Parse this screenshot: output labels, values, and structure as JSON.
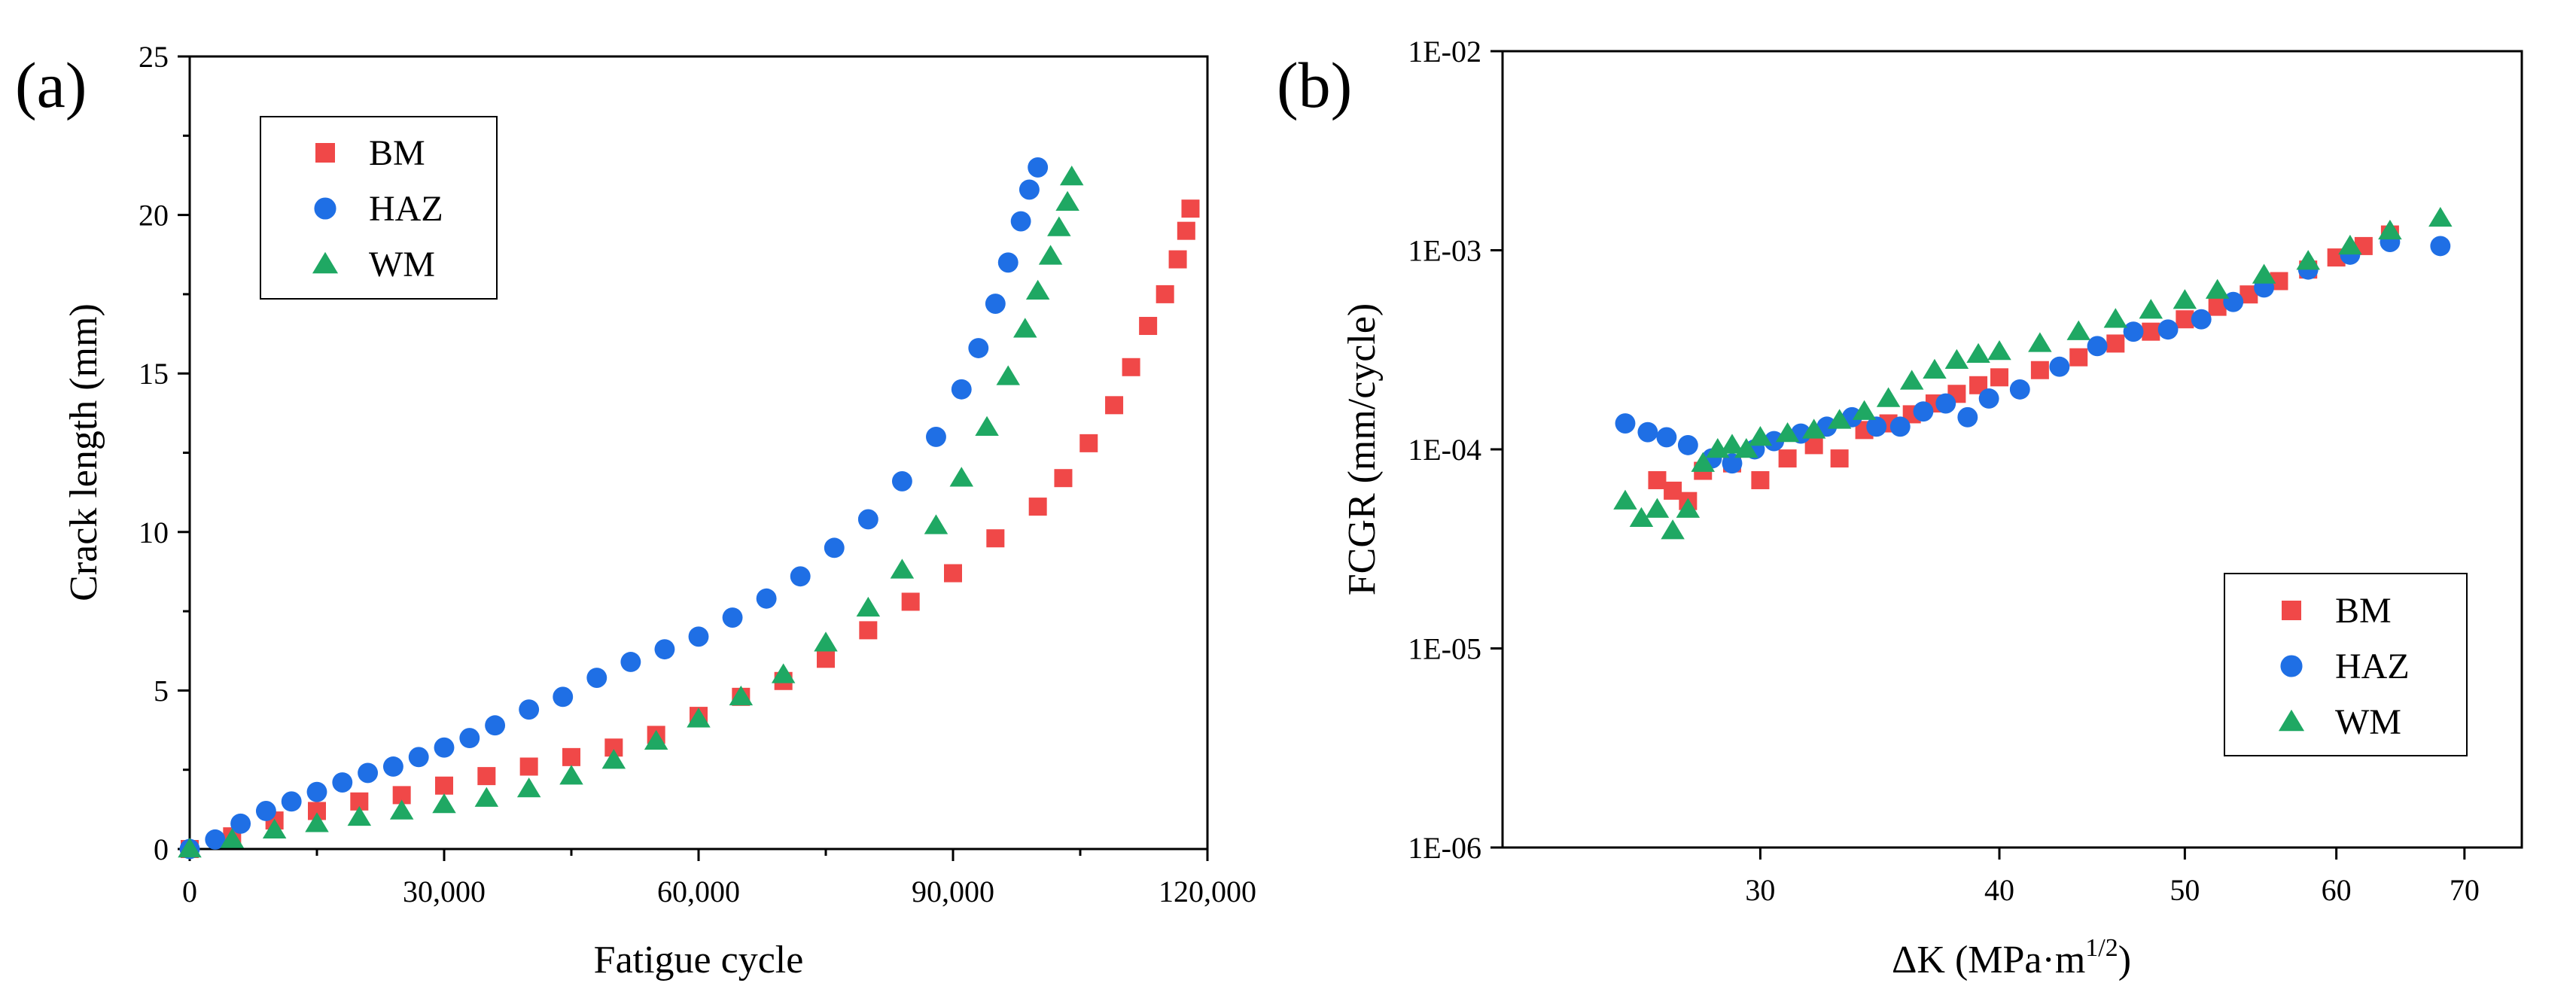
{
  "chart_data": [
    {
      "panel": "(a)",
      "type": "scatter",
      "title": "",
      "xlabel": "Fatigue cycle",
      "ylabel": "Crack length (mm)",
      "xlim": [
        0,
        120000
      ],
      "ylim": [
        0,
        25
      ],
      "xticks": [
        0,
        30000,
        60000,
        90000,
        120000
      ],
      "xtick_labels": [
        "0",
        "30,000",
        "60,000",
        "90,000",
        "120,000"
      ],
      "yticks": [
        0,
        5,
        10,
        15,
        20,
        25
      ],
      "ytick_labels": [
        "0",
        "5",
        "10",
        "15",
        "20",
        "25"
      ],
      "grid": false,
      "legend_position": "top-left",
      "series": [
        {
          "name": "BM",
          "color": "#f04848",
          "marker": "square",
          "x": [
            0,
            5000,
            10000,
            15000,
            20000,
            25000,
            30000,
            35000,
            40000,
            45000,
            50000,
            55000,
            60000,
            65000,
            70000,
            75000,
            80000,
            85000,
            90000,
            95000,
            100000,
            103000,
            106000,
            109000,
            111000,
            113000,
            115000,
            116500,
            117500,
            118000
          ],
          "y": [
            0,
            0.4,
            0.9,
            1.2,
            1.5,
            1.7,
            2.0,
            2.3,
            2.6,
            2.9,
            3.2,
            3.6,
            4.2,
            4.8,
            5.3,
            6.0,
            6.9,
            7.8,
            8.7,
            9.8,
            10.8,
            11.7,
            12.8,
            14.0,
            15.2,
            16.5,
            17.5,
            18.6,
            19.5,
            20.2
          ]
        },
        {
          "name": "HAZ",
          "color": "#1f6fe5",
          "marker": "circle",
          "x": [
            0,
            3000,
            6000,
            9000,
            12000,
            15000,
            18000,
            21000,
            24000,
            27000,
            30000,
            33000,
            36000,
            40000,
            44000,
            48000,
            52000,
            56000,
            60000,
            64000,
            68000,
            72000,
            76000,
            80000,
            84000,
            88000,
            91000,
            93000,
            95000,
            96500,
            98000,
            99000,
            100000
          ],
          "y": [
            0,
            0.3,
            0.8,
            1.2,
            1.5,
            1.8,
            2.1,
            2.4,
            2.6,
            2.9,
            3.2,
            3.5,
            3.9,
            4.4,
            4.8,
            5.4,
            5.9,
            6.3,
            6.7,
            7.3,
            7.9,
            8.6,
            9.5,
            10.4,
            11.6,
            13.0,
            14.5,
            15.8,
            17.2,
            18.5,
            19.8,
            20.8,
            21.5
          ]
        },
        {
          "name": "WM",
          "color": "#1fa863",
          "marker": "triangle",
          "x": [
            0,
            5000,
            10000,
            15000,
            20000,
            25000,
            30000,
            35000,
            40000,
            45000,
            50000,
            55000,
            60000,
            65000,
            70000,
            75000,
            80000,
            84000,
            88000,
            91000,
            94000,
            96500,
            98500,
            100000,
            101500,
            102500,
            103500,
            104000
          ],
          "y": [
            0,
            0.3,
            0.6,
            0.8,
            1.0,
            1.2,
            1.4,
            1.6,
            1.9,
            2.3,
            2.8,
            3.4,
            4.1,
            4.8,
            5.5,
            6.5,
            7.6,
            8.8,
            10.2,
            11.7,
            13.3,
            14.9,
            16.4,
            17.6,
            18.7,
            19.6,
            20.4,
            21.2
          ]
        }
      ]
    },
    {
      "panel": "(b)",
      "type": "scatter",
      "title": "",
      "xlabel": "ΔK (MPa·m",
      "xlabel_sup": "1/2",
      "xlabel_end": ")",
      "ylabel": "FCGR (mm/cycle)",
      "xscale": "log",
      "yscale": "log",
      "xlim": [
        22,
        75
      ],
      "ylim": [
        1e-06,
        0.01
      ],
      "xticks": [
        30,
        40,
        50,
        60,
        70
      ],
      "xtick_labels": [
        "30",
        "40",
        "50",
        "60",
        "70"
      ],
      "yticks": [
        1e-06,
        1e-05,
        0.0001,
        0.001,
        0.01
      ],
      "ytick_labels": [
        "1E-06",
        "1E-05",
        "1E-04",
        "1E-03",
        "1E-02"
      ],
      "grid": false,
      "legend_position": "bottom-right",
      "series": [
        {
          "name": "BM",
          "color": "#f04848",
          "marker": "square",
          "x": [
            26.5,
            27,
            27.5,
            28,
            29,
            30,
            31,
            32,
            33,
            34,
            35,
            36,
            37,
            38,
            39,
            40,
            42,
            44,
            46,
            48,
            50,
            52,
            54,
            56,
            58,
            60,
            62,
            64
          ],
          "y": [
            7e-05,
            6.2e-05,
            5.5e-05,
            7.8e-05,
            8.5e-05,
            7e-05,
            9e-05,
            0.000105,
            9e-05,
            0.000125,
            0.000135,
            0.00015,
            0.00017,
            0.00019,
            0.00021,
            0.00023,
            0.00025,
            0.00029,
            0.00034,
            0.00039,
            0.00045,
            0.00052,
            0.0006,
            0.0007,
            0.0008,
            0.00092,
            0.00105,
            0.0012
          ]
        },
        {
          "name": "HAZ",
          "color": "#1f6fe5",
          "marker": "circle",
          "x": [
            25.5,
            26.2,
            26.8,
            27.5,
            28.3,
            29,
            29.8,
            30.5,
            31.5,
            32.5,
            33.5,
            34.5,
            35.5,
            36.5,
            37.5,
            38.5,
            39.5,
            41,
            43,
            45,
            47,
            49,
            51,
            53,
            55,
            58,
            61,
            64,
            68
          ],
          "y": [
            0.000135,
            0.000122,
            0.000115,
            0.000105,
            9e-05,
            8.5e-05,
            0.0001,
            0.00011,
            0.00012,
            0.00013,
            0.000145,
            0.00013,
            0.00013,
            0.000155,
            0.00017,
            0.000145,
            0.00018,
            0.0002,
            0.00026,
            0.00033,
            0.00039,
            0.0004,
            0.00045,
            0.00055,
            0.00065,
            0.0008,
            0.00095,
            0.0011,
            0.00105
          ]
        },
        {
          "name": "WM",
          "color": "#1fa863",
          "marker": "triangle",
          "x": [
            25.5,
            26,
            26.5,
            27,
            27.5,
            28,
            28.5,
            29,
            29.5,
            30,
            31,
            32,
            33,
            34,
            35,
            36,
            37,
            38,
            39,
            40,
            42,
            44,
            46,
            48,
            50,
            52,
            55,
            58,
            61,
            64,
            68
          ],
          "y": [
            5.5e-05,
            4.5e-05,
            5e-05,
            3.9e-05,
            5e-05,
            8.5e-05,
            0.0001,
            0.000105,
            0.0001,
            0.000115,
            0.00012,
            0.000125,
            0.00014,
            0.000155,
            0.00018,
            0.00022,
            0.00025,
            0.00028,
            0.0003,
            0.00031,
            0.00034,
            0.00039,
            0.00045,
            0.0005,
            0.00056,
            0.00063,
            0.00075,
            0.00088,
            0.00105,
            0.00125,
            0.00145
          ]
        }
      ]
    }
  ]
}
